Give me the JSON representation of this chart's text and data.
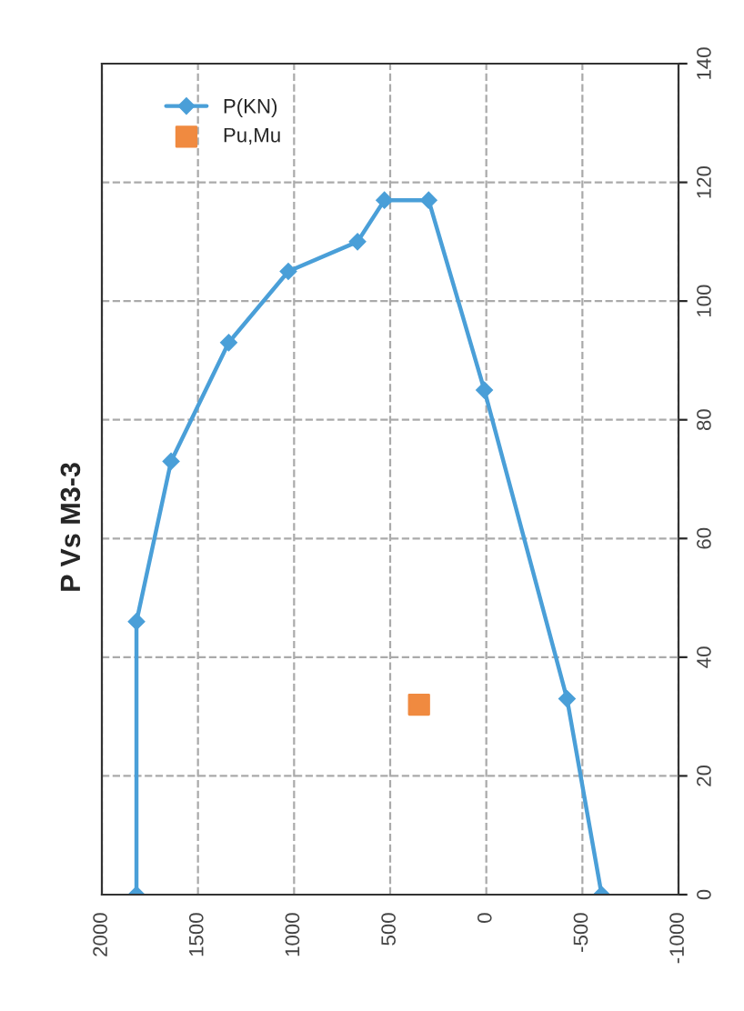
{
  "chart_data": {
    "type": "line",
    "title": "P Vs M3-3",
    "series": [
      {
        "name": "P(KN)",
        "color": "#4a9fd8",
        "marker": "diamond",
        "x": [
          1820,
          1820,
          1640,
          1340,
          1030,
          670,
          530,
          300,
          10,
          -420,
          -600
        ],
        "values": [
          0,
          46,
          73,
          93,
          105,
          110,
          117,
          117,
          85,
          33,
          0
        ]
      },
      {
        "name": "Pu,Mu",
        "type": "scatter",
        "color": "#f08a40",
        "marker": "square",
        "x": [
          350
        ],
        "values": [
          32
        ]
      }
    ],
    "xlim": [
      2000,
      -1000
    ],
    "xticks": [
      2000,
      1500,
      1000,
      500,
      0,
      -500,
      -1000
    ],
    "ylim": [
      0,
      140
    ],
    "yticks": [
      0,
      20,
      40,
      60,
      80,
      100,
      120,
      140
    ],
    "grid": true,
    "legend": "top left"
  }
}
